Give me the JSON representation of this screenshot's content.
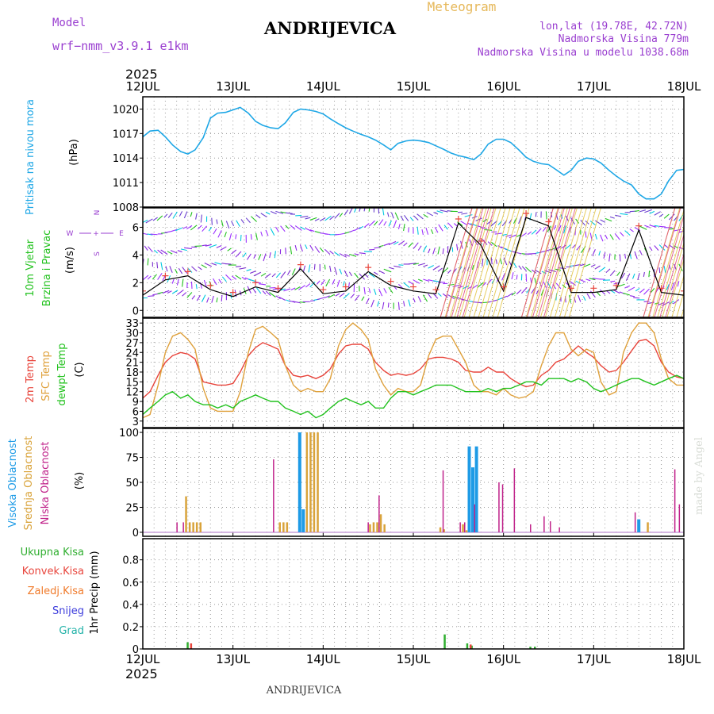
{
  "header": {
    "model_label": "Model",
    "model_name": "wrf−nmm_v3.9.1 e1km",
    "title": "ANDRIJEVICA",
    "product": "Meteogram",
    "coords": "lon,lat (19.78E, 42.72N)",
    "elevation": "Nadmorska Visina 779m",
    "model_elevation": "Nadmorska Visina u modelu 1038.68m",
    "year_top": "2025",
    "year_bottom": "2025",
    "footer_name": "ANDRIJEVICA",
    "credit": "made by Angel"
  },
  "colors": {
    "pressure": "#1ea7e6",
    "temp2m": "#e8453c",
    "sfc": "#dfa13c",
    "dewpt": "#22c21e",
    "high_cloud": "#1e9be6",
    "mid_cloud": "#d9a33a",
    "low_cloud": "#c0228a",
    "total_precip": "#2fae2f",
    "convective": "#e8453c",
    "frozen": "#f07a2a",
    "snow": "#3d3ddc",
    "hail": "#22b2a8",
    "label_purple": "#9a3fd0"
  },
  "chart_data": [
    {
      "id": "pressure",
      "type": "line",
      "title": "",
      "ylabel": "Pritisak na nivou mora",
      "units": "(hPa)",
      "x_ticks": [
        "12JUL",
        "13JUL",
        "14JUL",
        "15JUL",
        "16JUL",
        "17JUL",
        "18JUL"
      ],
      "xlim_days": [
        0,
        6
      ],
      "ylim": [
        1008,
        1021.5
      ],
      "y_ticks": [
        1008,
        1011,
        1014,
        1017,
        1020
      ],
      "grid": true,
      "series": [
        {
          "name": "",
          "x": [
            0,
            0.08,
            0.17,
            0.25,
            0.33,
            0.42,
            0.5,
            0.58,
            0.67,
            0.75,
            0.83,
            0.92,
            1,
            1.08,
            1.17,
            1.25,
            1.33,
            1.42,
            1.5,
            1.58,
            1.67,
            1.75,
            1.83,
            1.92,
            2,
            2.08,
            2.17,
            2.25,
            2.33,
            2.42,
            2.5,
            2.58,
            2.67,
            2.75,
            2.83,
            2.92,
            3,
            3.08,
            3.17,
            3.25,
            3.33,
            3.42,
            3.5,
            3.58,
            3.67,
            3.75,
            3.83,
            3.92,
            4,
            4.08,
            4.17,
            4.25,
            4.33,
            4.42,
            4.5,
            4.58,
            4.67,
            4.75,
            4.83,
            4.92,
            5,
            5.08,
            5.17,
            5.25,
            5.33,
            5.42,
            5.5,
            5.58,
            5.67,
            5.75,
            5.83,
            5.92,
            6
          ],
          "values": [
            1016.6,
            1017.3,
            1017.4,
            1016.6,
            1015.6,
            1014.8,
            1014.5,
            1015.0,
            1016.5,
            1018.9,
            1019.5,
            1019.6,
            1019.9,
            1020.2,
            1019.5,
            1018.5,
            1018.0,
            1017.7,
            1017.6,
            1018.3,
            1019.6,
            1020.0,
            1019.9,
            1019.7,
            1019.4,
            1018.8,
            1018.2,
            1017.7,
            1017.3,
            1016.9,
            1016.6,
            1016.2,
            1015.6,
            1015.0,
            1015.8,
            1016.1,
            1016.2,
            1016.1,
            1015.9,
            1015.5,
            1015.1,
            1014.6,
            1014.3,
            1014.1,
            1013.8,
            1014.5,
            1015.7,
            1016.3,
            1016.3,
            1015.9,
            1015.0,
            1014.1,
            1013.6,
            1013.3,
            1013.2,
            1012.6,
            1011.9,
            1012.5,
            1013.6,
            1014.0,
            1013.9,
            1013.4,
            1012.5,
            1011.8,
            1011.2,
            1010.7,
            1009.6,
            1009.0,
            1009.0,
            1009.6,
            1011.2,
            1012.5,
            1012.6
          ]
        }
      ]
    },
    {
      "id": "wind",
      "type": "line",
      "title": "",
      "ylabel_line1": "10m Vjetar",
      "ylabel_line2": "Brzina i Pravac",
      "units": "(m/s)",
      "compass": {
        "north": "N",
        "south": "S",
        "east": "E",
        "west": "W",
        "center": "+"
      },
      "ylim": [
        -0.5,
        7.4
      ],
      "y_ticks": [
        0,
        2,
        4,
        6
      ],
      "grid": true,
      "series": [
        {
          "name": "",
          "x": [
            0,
            0.25,
            0.5,
            0.75,
            1,
            1.25,
            1.5,
            1.75,
            2,
            2.25,
            2.5,
            2.75,
            3,
            3.25,
            3.5,
            3.75,
            4,
            4.25,
            4.5,
            4.75,
            5,
            5.25,
            5.5,
            5.75,
            6
          ],
          "values": [
            1.1,
            2.2,
            2.5,
            1.5,
            1.0,
            1.7,
            1.3,
            3.0,
            1.2,
            1.4,
            2.8,
            1.8,
            1.4,
            1.2,
            6.3,
            4.7,
            1.4,
            6.7,
            6.1,
            1.3,
            1.3,
            1.5,
            5.8,
            1.3,
            1.1
          ]
        }
      ]
    },
    {
      "id": "temperature",
      "type": "line",
      "title": "",
      "ylabel_temp2m": "2m Temp",
      "ylabel_sfc": "SFC Temp",
      "ylabel_dewpt": "dewpt Temp",
      "units": "(C)",
      "ylim": [
        1,
        34.5
      ],
      "y_ticks": [
        3,
        6,
        9,
        12,
        15,
        18,
        21,
        24,
        27,
        30,
        33
      ],
      "grid": true,
      "series": [
        {
          "name": "2m Temp",
          "x": [
            0,
            0.08,
            0.17,
            0.25,
            0.33,
            0.42,
            0.5,
            0.58,
            0.67,
            0.75,
            0.83,
            0.92,
            1,
            1.08,
            1.17,
            1.25,
            1.33,
            1.42,
            1.5,
            1.58,
            1.67,
            1.75,
            1.83,
            1.92,
            2,
            2.08,
            2.17,
            2.25,
            2.33,
            2.42,
            2.5,
            2.58,
            2.67,
            2.75,
            2.83,
            2.92,
            3,
            3.08,
            3.17,
            3.25,
            3.33,
            3.42,
            3.5,
            3.58,
            3.67,
            3.75,
            3.83,
            3.92,
            4,
            4.08,
            4.17,
            4.25,
            4.33,
            4.42,
            4.5,
            4.58,
            4.67,
            4.75,
            4.83,
            4.92,
            5,
            5.08,
            5.17,
            5.25,
            5.33,
            5.42,
            5.5,
            5.58,
            5.67,
            5.75,
            5.83,
            5.92,
            6
          ],
          "values": [
            10,
            12,
            17,
            21,
            23,
            24,
            23.5,
            22,
            15,
            14.5,
            14,
            14,
            14.5,
            18,
            23,
            25.5,
            27,
            26,
            25,
            20,
            17,
            16.5,
            17,
            16,
            17,
            19,
            23.5,
            26,
            26.5,
            26.5,
            25,
            21,
            18.5,
            17,
            17.5,
            17,
            17.5,
            19,
            22,
            22.5,
            22.5,
            22,
            21,
            18.5,
            18,
            18,
            19.5,
            18,
            18,
            16,
            14.5,
            13.5,
            14,
            17,
            18.5,
            21,
            22,
            24,
            26,
            24,
            22.5,
            20,
            18,
            18.5,
            21,
            24.5,
            27.5,
            28,
            26,
            21,
            18,
            16.5,
            16
          ]
        },
        {
          "name": "SFC Temp",
          "x": [
            0,
            0.08,
            0.17,
            0.25,
            0.33,
            0.42,
            0.5,
            0.58,
            0.67,
            0.75,
            0.83,
            0.92,
            1,
            1.08,
            1.17,
            1.25,
            1.33,
            1.42,
            1.5,
            1.58,
            1.67,
            1.75,
            1.83,
            1.92,
            2,
            2.08,
            2.17,
            2.25,
            2.33,
            2.42,
            2.5,
            2.58,
            2.67,
            2.75,
            2.83,
            2.92,
            3,
            3.08,
            3.17,
            3.25,
            3.33,
            3.42,
            3.5,
            3.58,
            3.67,
            3.75,
            3.83,
            3.92,
            4,
            4.08,
            4.17,
            4.25,
            4.33,
            4.42,
            4.5,
            4.58,
            4.67,
            4.75,
            4.83,
            4.92,
            5,
            5.08,
            5.17,
            5.25,
            5.33,
            5.42,
            5.5,
            5.58,
            5.67,
            5.75,
            5.83,
            5.92,
            6
          ],
          "values": [
            4,
            5,
            14,
            24,
            29,
            30,
            28,
            25,
            13,
            7,
            6,
            6,
            6,
            12,
            24,
            31,
            32,
            30,
            28,
            20,
            14,
            12,
            13,
            12,
            12,
            16,
            26,
            31,
            33,
            31,
            28,
            19,
            14,
            11,
            13,
            12,
            12,
            14,
            23,
            28,
            29,
            29,
            25,
            21,
            14,
            12,
            12,
            11,
            13,
            11,
            10,
            10.5,
            12,
            20,
            26,
            30,
            30,
            25,
            23,
            25,
            24,
            15,
            11,
            12,
            24,
            30,
            33,
            33,
            30,
            22,
            16,
            14,
            14
          ]
        },
        {
          "name": "dewpt Temp",
          "x": [
            0,
            0.08,
            0.17,
            0.25,
            0.33,
            0.42,
            0.5,
            0.58,
            0.67,
            0.75,
            0.83,
            0.92,
            1,
            1.08,
            1.17,
            1.25,
            1.33,
            1.42,
            1.5,
            1.58,
            1.67,
            1.75,
            1.83,
            1.92,
            2,
            2.08,
            2.17,
            2.25,
            2.33,
            2.42,
            2.5,
            2.58,
            2.67,
            2.75,
            2.83,
            2.92,
            3,
            3.08,
            3.17,
            3.25,
            3.33,
            3.42,
            3.5,
            3.58,
            3.67,
            3.75,
            3.83,
            3.92,
            4,
            4.08,
            4.17,
            4.25,
            4.33,
            4.42,
            4.5,
            4.58,
            4.67,
            4.75,
            4.83,
            4.92,
            5,
            5.08,
            5.17,
            5.25,
            5.33,
            5.42,
            5.5,
            5.58,
            5.67,
            5.75,
            5.83,
            5.92,
            6
          ],
          "values": [
            5,
            7,
            9,
            11,
            12,
            10,
            11,
            9,
            8,
            8,
            7,
            8,
            7,
            9,
            10,
            11,
            10,
            9,
            9,
            7,
            6,
            5,
            6,
            4,
            5,
            7,
            9,
            10,
            9,
            8,
            9,
            7,
            7,
            10,
            12,
            12,
            11,
            12,
            13,
            14,
            14,
            14,
            13,
            12,
            12,
            12,
            13,
            12,
            13,
            13,
            14,
            15,
            15,
            14,
            16,
            16,
            16,
            15,
            16,
            15,
            13,
            12,
            13,
            14,
            15,
            16,
            16,
            15,
            14,
            15,
            16,
            17,
            16
          ]
        }
      ]
    },
    {
      "id": "clouds",
      "type": "bar",
      "title": "",
      "ylabel_high": "Visoka Oblacnost",
      "ylabel_mid": "Srednja Oblacnost",
      "ylabel_low": "Niska Oblacnost",
      "units": "(%)",
      "ylim": [
        -4,
        104
      ],
      "y_ticks": [
        0,
        25,
        50,
        75,
        100
      ],
      "grid": true,
      "series": [
        {
          "name": "Visoka Oblacnost",
          "x": [
            1.74,
            1.78,
            3.62,
            3.66,
            3.7,
            5.5
          ],
          "values": [
            100,
            23,
            86,
            65,
            86,
            13
          ]
        },
        {
          "name": "Srednja Oblacnost",
          "x": [
            0.48,
            0.52,
            0.56,
            0.6,
            0.64,
            1.52,
            1.56,
            1.6,
            1.82,
            1.86,
            1.9,
            1.94,
            2.52,
            2.56,
            2.6,
            2.64,
            2.68,
            3.3,
            3.34,
            3.55,
            3.59,
            5.6
          ],
          "values": [
            36,
            10,
            10,
            10,
            10,
            10,
            10,
            10,
            100,
            100,
            100,
            100,
            8,
            10,
            10,
            18,
            8,
            5,
            3,
            8,
            2,
            10
          ]
        },
        {
          "name": "Niska Oblacnost",
          "x": [
            0.38,
            0.45,
            1.45,
            2.5,
            2.62,
            3.33,
            3.52,
            3.57,
            3.68,
            3.95,
            3.99,
            4.12,
            4.3,
            4.45,
            4.52,
            4.62,
            5.46,
            5.9,
            5.95
          ],
          "values": [
            10,
            10,
            73,
            10,
            37,
            62,
            10,
            10,
            28,
            50,
            48,
            64,
            8,
            16,
            11,
            5,
            20,
            63,
            28
          ]
        }
      ]
    },
    {
      "id": "precip",
      "type": "bar",
      "title": "",
      "ylabel": "1hr Precip (mm)",
      "legend": [
        "Ukupna Kisa",
        "Konvek.Kisa",
        "Zaledj.Kisa",
        "Snijeg",
        "Grad"
      ],
      "legend_position": "left",
      "ylim": [
        0,
        0.99
      ],
      "y_ticks": [
        0,
        0.2,
        0.4,
        0.6,
        0.8
      ],
      "grid": true,
      "series": [
        {
          "name": "Ukupna Kisa",
          "x": [
            0.5,
            3.35,
            3.6,
            3.65,
            4.3,
            4.35
          ],
          "values": [
            0.06,
            0.13,
            0.05,
            0.03,
            0.02,
            0.02
          ]
        },
        {
          "name": "Konvek.Kisa",
          "x": [
            0.52,
            3.62
          ],
          "values": [
            0.05,
            0.04
          ]
        }
      ]
    }
  ]
}
